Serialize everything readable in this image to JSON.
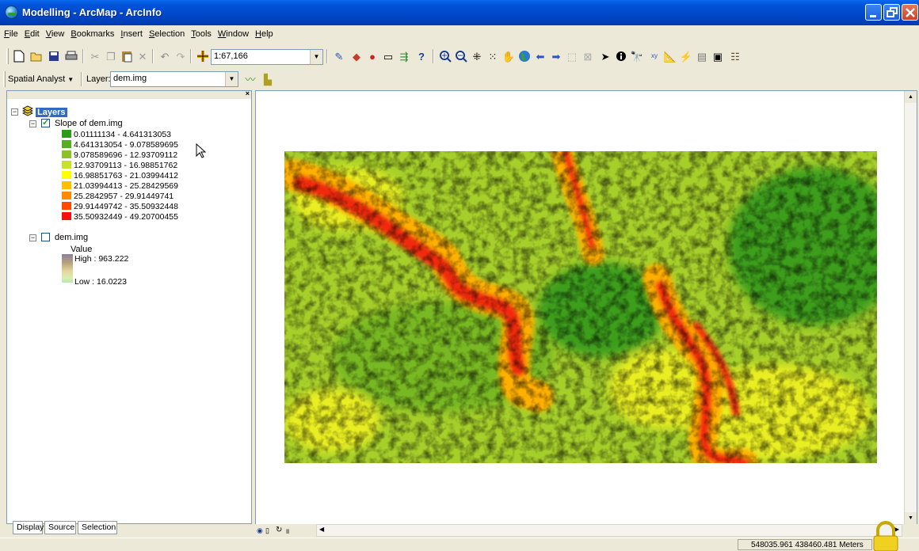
{
  "window": {
    "title": "Modelling - ArcMap - ArcInfo"
  },
  "menu": [
    "File",
    "Edit",
    "View",
    "Bookmarks",
    "Insert",
    "Selection",
    "Tools",
    "Window",
    "Help"
  ],
  "toolbar": {
    "scale": "1:67,166"
  },
  "spatial_analyst": {
    "label": "Spatial Analyst",
    "layer_label": "Layer:",
    "layer_value": "dem.img"
  },
  "toc": {
    "root": "Layers",
    "layer1": {
      "name": "Slope of dem.img",
      "checked": true,
      "classes": [
        {
          "label": "0.01111134 - 4.641313053",
          "color": "#2e9a1c"
        },
        {
          "label": "4.641313054 - 9.078589695",
          "color": "#56ac22"
        },
        {
          "label": "9.078589696 - 12.93709112",
          "color": "#8cc228"
        },
        {
          "label": "12.93709113 - 16.98851762",
          "color": "#c6e02c"
        },
        {
          "label": "16.98851763 - 21.03994412",
          "color": "#ffff00"
        },
        {
          "label": "21.03994413 - 25.28429569",
          "color": "#ffbf00"
        },
        {
          "label": "25.2842957 - 29.91449741",
          "color": "#ff8a00"
        },
        {
          "label": "29.91449742 - 35.50932448",
          "color": "#ff4a00"
        },
        {
          "label": "35.50932449 - 49.20700455",
          "color": "#f41010"
        }
      ]
    },
    "layer2": {
      "name": "dem.img",
      "checked": false,
      "value_label": "Value",
      "high": "High : 963.222",
      "low": "Low : 16.0223"
    }
  },
  "tabs": [
    "Display",
    "Source",
    "Selection"
  ],
  "status": {
    "coordinates": "548035.961  438460.481 Meters"
  }
}
